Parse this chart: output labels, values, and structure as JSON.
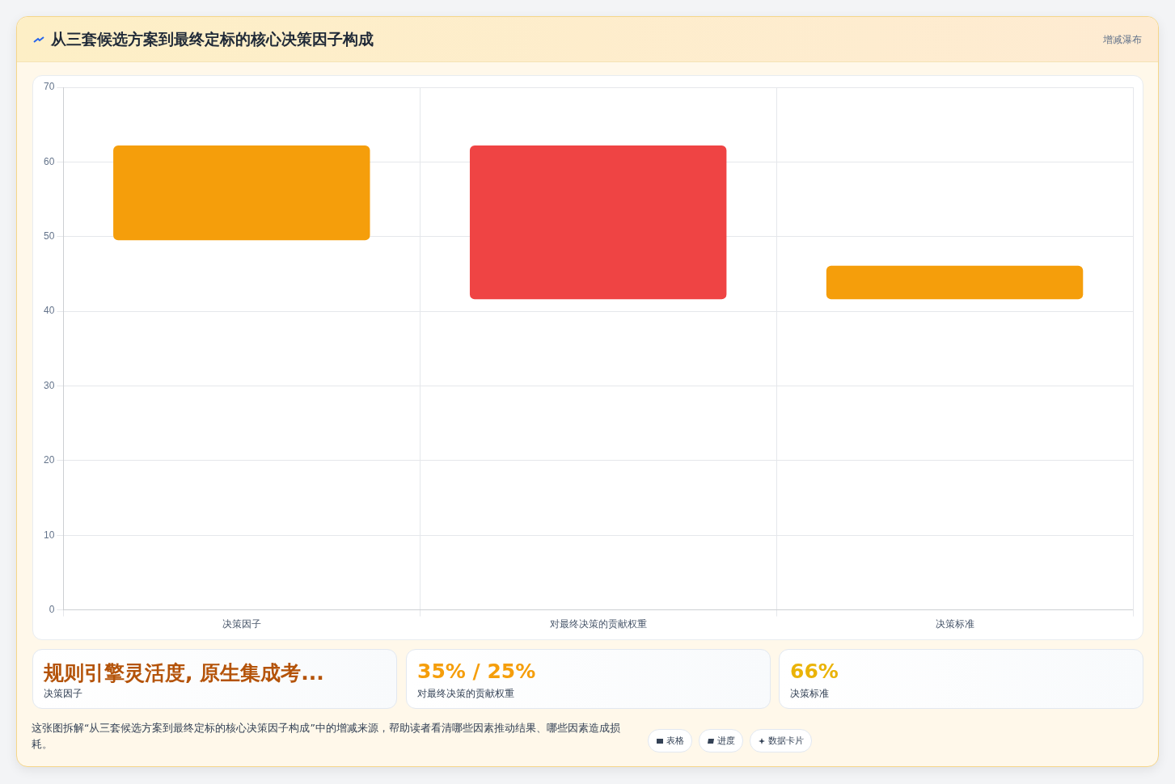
{
  "chart_data": {
    "type": "bar",
    "title": "从三套候选方案到最终定标的核心决策因子构成",
    "subtitle": "增减瀑布",
    "categories": [
      "决策因子",
      "对最终决策的贡献权重",
      "决策标准"
    ],
    "values": [
      12.7,
      20.6,
      4.5
    ],
    "base": [
      49.5,
      41.6,
      41.6
    ],
    "colors": [
      "#f59e0b",
      "#ef4444",
      "#f59e0b"
    ],
    "ylim": [
      0,
      70
    ],
    "yticks": [
      0,
      10,
      20,
      30,
      40,
      50,
      60,
      70
    ],
    "grid": true,
    "legend": false,
    "annotations": [
      "规则引擎灵活度, 原生集成考...",
      "决策因子",
      "35% / 25%",
      "对最终决策的贡献权重",
      "66%",
      "决策标准",
      "这张图拆解“从三套候选方案到最终定标的核心决策因子构成”中的增减来源，帮助读者看清哪些因素推动结果、哪些因素造成损耗。",
      "表格",
      "进度",
      "数据卡片"
    ]
  }
}
